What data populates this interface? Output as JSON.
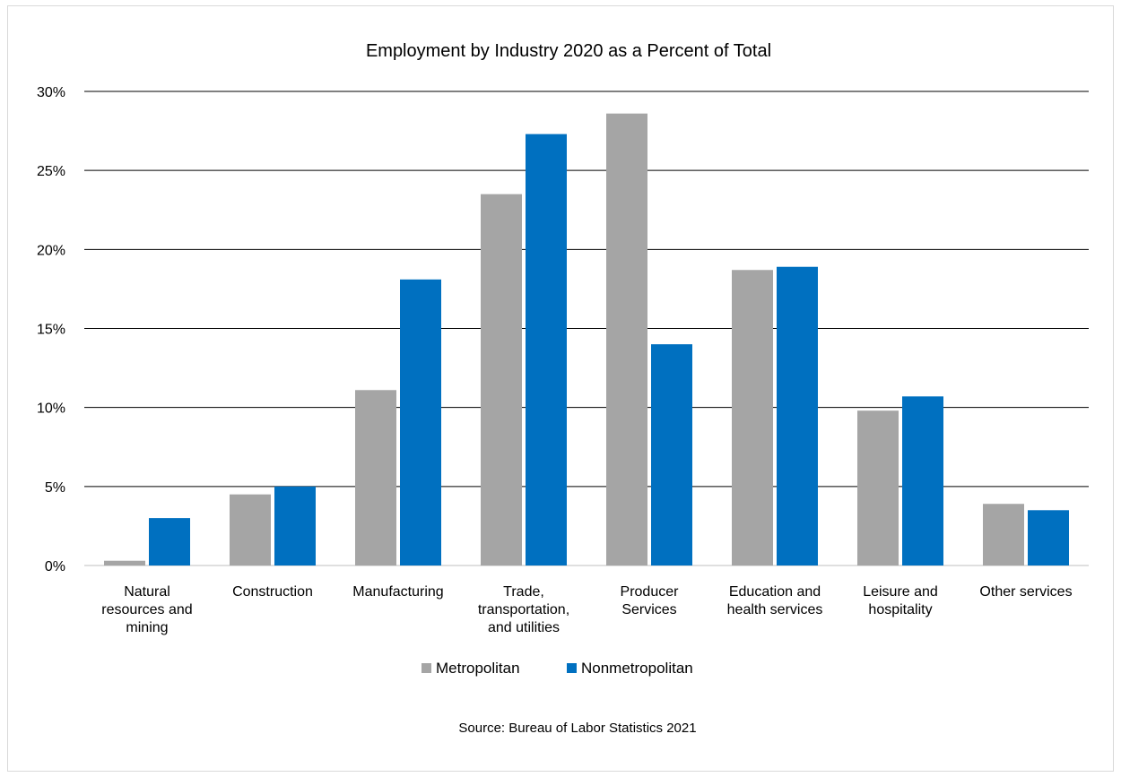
{
  "chart_data": {
    "type": "bar",
    "title": "Employment by Industry 2020 as a Percent of Total",
    "source": "Source: Bureau of Labor Statistics 2021",
    "categories": [
      [
        "Natural",
        "resources and",
        "mining"
      ],
      [
        "Construction"
      ],
      [
        "Manufacturing"
      ],
      [
        "Trade,",
        "transportation,",
        "and utilities"
      ],
      [
        "Producer",
        "Services"
      ],
      [
        "Education and",
        "health services"
      ],
      [
        "Leisure and",
        "hospitality"
      ],
      [
        "Other services"
      ]
    ],
    "series": [
      {
        "name": "Metropolitan",
        "color": "#a5a5a5",
        "values": [
          0.3,
          4.5,
          11.1,
          23.5,
          28.6,
          18.7,
          9.8,
          3.9
        ]
      },
      {
        "name": "Nonmetropolitan",
        "color": "#0070c0",
        "values": [
          3.0,
          5.0,
          18.1,
          27.3,
          14.0,
          18.9,
          10.7,
          3.5
        ]
      }
    ],
    "ylim": [
      0,
      30
    ],
    "yticks": [
      0,
      5,
      10,
      15,
      20,
      25,
      30
    ],
    "ytick_labels": [
      "0%",
      "5%",
      "10%",
      "15%",
      "20%",
      "25%",
      "30%"
    ],
    "grid": true,
    "legend_position": "bottom"
  }
}
